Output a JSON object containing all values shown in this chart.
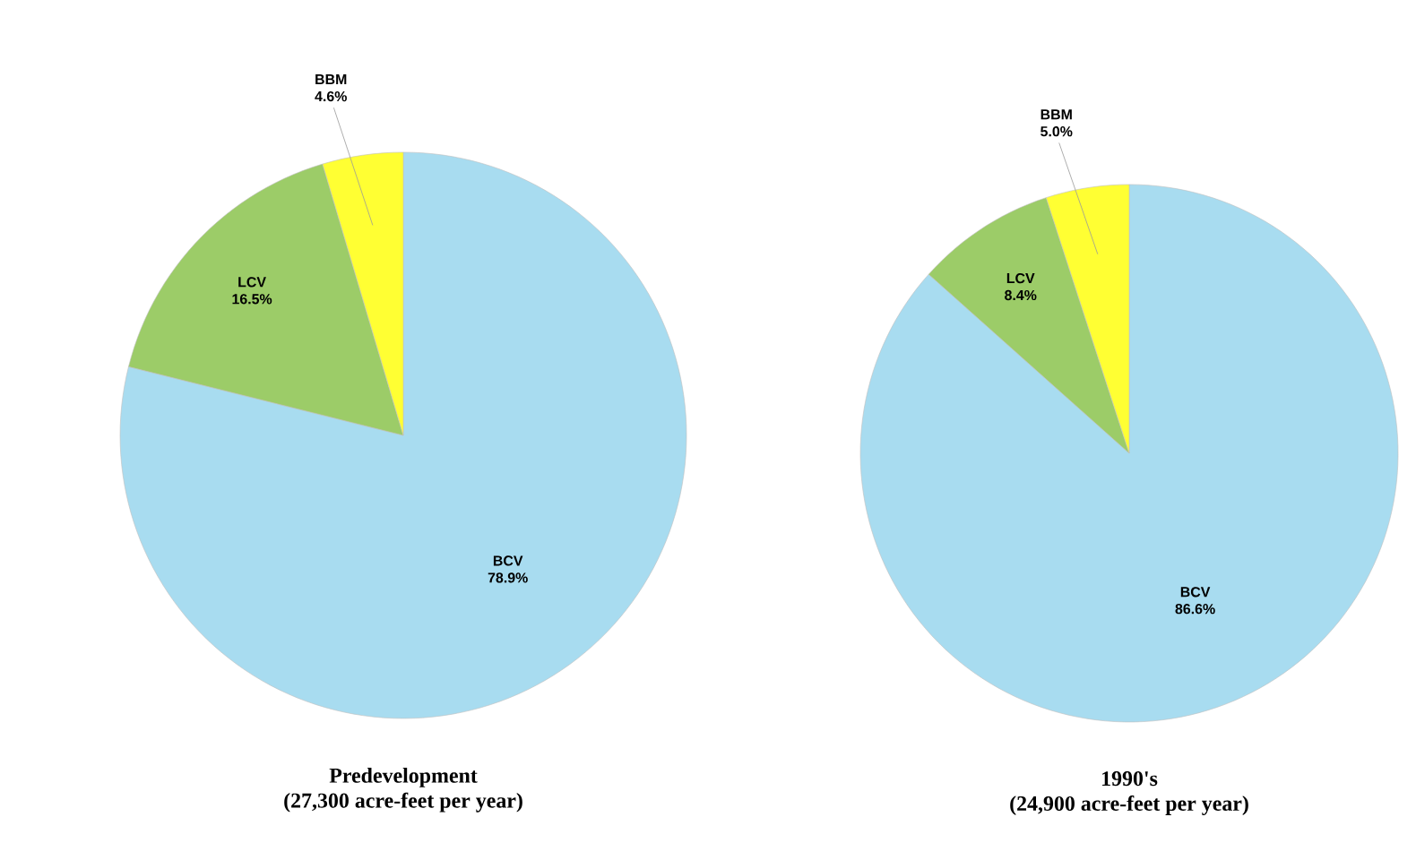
{
  "chart_data": [
    {
      "type": "pie",
      "title": "Predevelopment",
      "subtitle": "(27,300 acre-feet per year)",
      "categories": [
        "BCV",
        "LCV",
        "BBM"
      ],
      "values": [
        78.9,
        16.5,
        4.6
      ],
      "value_labels": [
        "78.9%",
        "16.5%",
        "4.6%"
      ],
      "colors": [
        "#a8dcf0",
        "#9ccc68",
        "#ffff33"
      ]
    },
    {
      "type": "pie",
      "title": "1990's",
      "subtitle": "(24,900 acre-feet per year)",
      "categories": [
        "BCV",
        "LCV",
        "BBM"
      ],
      "values": [
        86.6,
        8.4,
        5.0
      ],
      "value_labels": [
        "86.6%",
        "8.4%",
        "5.0%"
      ],
      "colors": [
        "#a8dcf0",
        "#9ccc68",
        "#ffff33"
      ]
    }
  ]
}
